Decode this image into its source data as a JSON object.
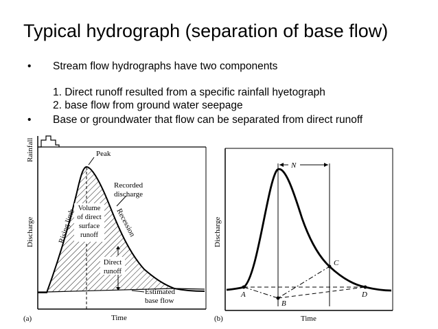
{
  "slide": {
    "title": "Typical hydrograph (separation of base flow)",
    "bullets": [
      {
        "marker": "•",
        "text": "Stream flow hydrographs have two components"
      },
      {
        "marker": "",
        "text": "1. Direct runoff resulted from a specific rainfall hyetograph"
      },
      {
        "marker": "",
        "text": "2. base flow from ground water seepage"
      },
      {
        "marker": "•",
        "text": "Base or groundwater that flow can be separated from direct runoff"
      }
    ]
  },
  "figure_a": {
    "panel_label": "(a)",
    "y_axis_top": "Rainfall",
    "y_axis_bottom": "Discharge",
    "x_axis": "Time",
    "peak": "Peak",
    "recorded_discharge": [
      "Recorded",
      "discharge"
    ],
    "rising_limb": "Rising limb",
    "recession": "Recession",
    "volume": [
      "Volume",
      "of direct",
      "surface",
      "runoff"
    ],
    "direct_runoff": [
      "Direct",
      "runoff"
    ],
    "estimated_base_flow": [
      "Estimated",
      "base flow"
    ]
  },
  "figure_b": {
    "panel_label": "(b)",
    "y_axis": "Discharge",
    "x_axis": "Time",
    "n_label": "N",
    "points": {
      "a": "A",
      "b": "B",
      "c": "C",
      "d": "D"
    }
  }
}
